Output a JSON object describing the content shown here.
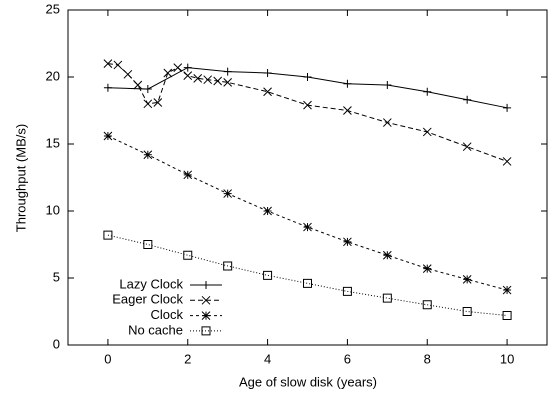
{
  "chart_data": {
    "type": "line",
    "xlabel": "Age of slow disk (years)",
    "ylabel": "Throughput (MB/s)",
    "xlim": [
      -1,
      11
    ],
    "xticks": [
      0,
      2,
      4,
      6,
      8,
      10
    ],
    "ylim": [
      0,
      25
    ],
    "yticks": [
      0,
      5,
      10,
      15,
      20,
      25
    ],
    "legend": "lower left",
    "series": [
      {
        "name": "Lazy Clock",
        "color": "#000000",
        "marker": "plus",
        "dash": "solid",
        "x": [
          0,
          1,
          2,
          3,
          4,
          5,
          6,
          7,
          8,
          9,
          10
        ],
        "values": [
          19.2,
          19.1,
          20.7,
          20.4,
          20.3,
          20.0,
          19.5,
          19.4,
          18.9,
          18.3,
          17.7
        ]
      },
      {
        "name": "Eager Clock",
        "color": "#000000",
        "marker": "cross",
        "dash": "dashed",
        "x": [
          0,
          0.25,
          0.5,
          0.75,
          1,
          1.25,
          1.5,
          1.75,
          2,
          2.25,
          2.5,
          2.75,
          3,
          4,
          5,
          6,
          7,
          8,
          9,
          10
        ],
        "values": [
          21.0,
          20.9,
          20.2,
          19.4,
          18.0,
          18.1,
          20.3,
          20.7,
          20.1,
          19.9,
          19.8,
          19.7,
          19.6,
          18.9,
          17.9,
          17.5,
          16.6,
          15.9,
          14.8,
          13.7
        ]
      },
      {
        "name": "Clock",
        "color": "#000000",
        "marker": "star",
        "dash": "short-dashed",
        "x": [
          0,
          1,
          2,
          3,
          4,
          5,
          6,
          7,
          8,
          9,
          10
        ],
        "values": [
          15.6,
          14.2,
          12.7,
          11.3,
          10.0,
          8.8,
          7.7,
          6.7,
          5.7,
          4.9,
          4.1
        ]
      },
      {
        "name": "No cache",
        "color": "#000000",
        "marker": "square",
        "dash": "dotted",
        "x": [
          0,
          1,
          2,
          3,
          4,
          5,
          6,
          7,
          8,
          9,
          10
        ],
        "values": [
          8.2,
          7.5,
          6.7,
          5.9,
          5.2,
          4.6,
          4.0,
          3.5,
          3.0,
          2.5,
          2.2
        ]
      }
    ]
  }
}
